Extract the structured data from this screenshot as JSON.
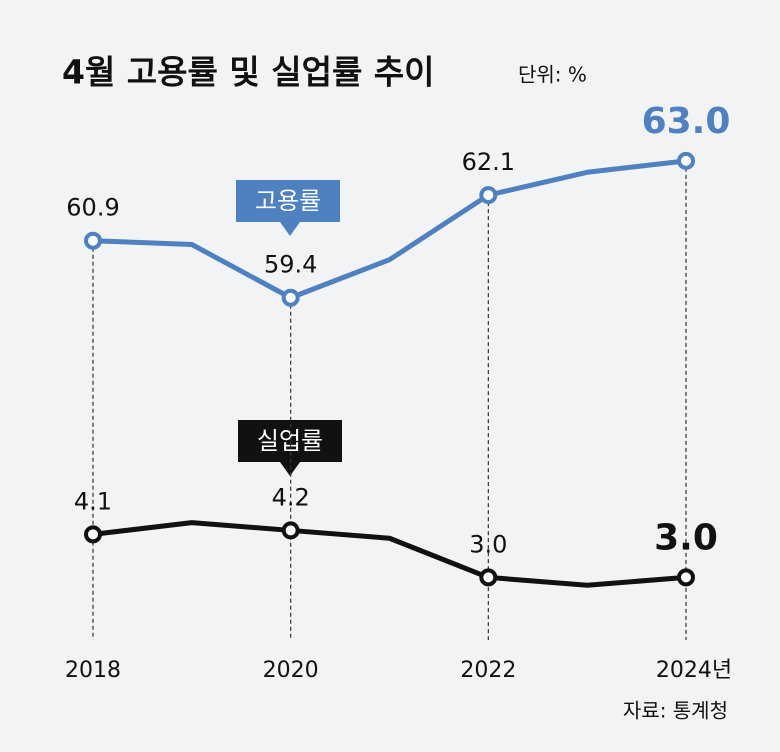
{
  "chart_data": {
    "type": "line",
    "title": "4월 고용률 및 실업률 추이",
    "subtitle": "단위: %",
    "source": "자료: 통계청",
    "categories": [
      "2018",
      null,
      "2020",
      null,
      "2022",
      null,
      "2024년"
    ],
    "series": [
      {
        "name": "고용률",
        "color": "#4f80c0",
        "values": [
          60.9,
          60.8,
          59.4,
          60.4,
          62.1,
          62.7,
          63.0
        ],
        "value_labels": [
          "60.9",
          null,
          "59.4",
          null,
          "62.1",
          null,
          "63.0"
        ]
      },
      {
        "name": "실업률",
        "color": "#111111",
        "axis": "y2",
        "values": [
          4.1,
          4.4,
          4.2,
          4.0,
          3.0,
          2.8,
          3.0
        ],
        "value_labels": [
          "4.1",
          null,
          "4.2",
          null,
          "3.0",
          null,
          "3.0"
        ]
      }
    ],
    "ylim": [
      50.4,
      64.6
    ],
    "y2lim": [
      1.4,
      15.2
    ]
  }
}
